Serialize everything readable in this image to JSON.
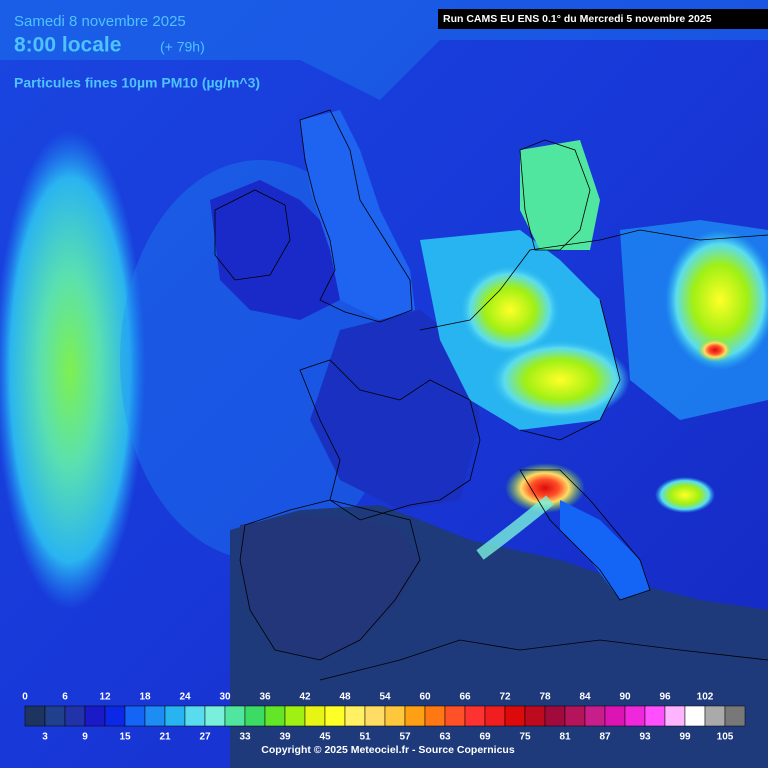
{
  "header": {
    "date": "Samedi 8 novembre 2025",
    "time": "8:00 locale",
    "lead": "(+ 79h)",
    "parameter": "Particules fines 10µm PM10 (µg/m^3)",
    "run": "Run CAMS EU ENS 0.1° du Mercredi 5 novembre 2025"
  },
  "legend": {
    "range": [
      0,
      108
    ],
    "ticks_top": [
      0,
      6,
      12,
      18,
      24,
      30,
      36,
      42,
      48,
      54,
      60,
      66,
      72,
      78,
      84,
      90,
      96,
      102
    ],
    "ticks_bottom": [
      3,
      9,
      15,
      21,
      27,
      33,
      39,
      45,
      51,
      57,
      63,
      69,
      75,
      81,
      87,
      93,
      99,
      105
    ],
    "colors": [
      "#1d3461",
      "#203f8c",
      "#2232a8",
      "#1a1ac8",
      "#0a28e6",
      "#1464f5",
      "#1e8cf5",
      "#28b4f0",
      "#5adcf0",
      "#78f0dc",
      "#50e6a0",
      "#3cdc64",
      "#64e628",
      "#a0f014",
      "#e6f514",
      "#ffff28",
      "#fff064",
      "#ffdc64",
      "#ffc83c",
      "#ffa014",
      "#ff7814",
      "#ff5028",
      "#ff3232",
      "#f01e1e",
      "#dc0a0a",
      "#be0a1e",
      "#a00a3c",
      "#b4145a",
      "#c81e8c",
      "#dc14b4",
      "#f028dc",
      "#ff50ff",
      "#ffb4ff",
      "#ffffff",
      "#aaaaaa",
      "#787878"
    ]
  },
  "footer": {
    "copyright": "Copyright © 2025 Meteociel.fr - Source Copernicus"
  }
}
